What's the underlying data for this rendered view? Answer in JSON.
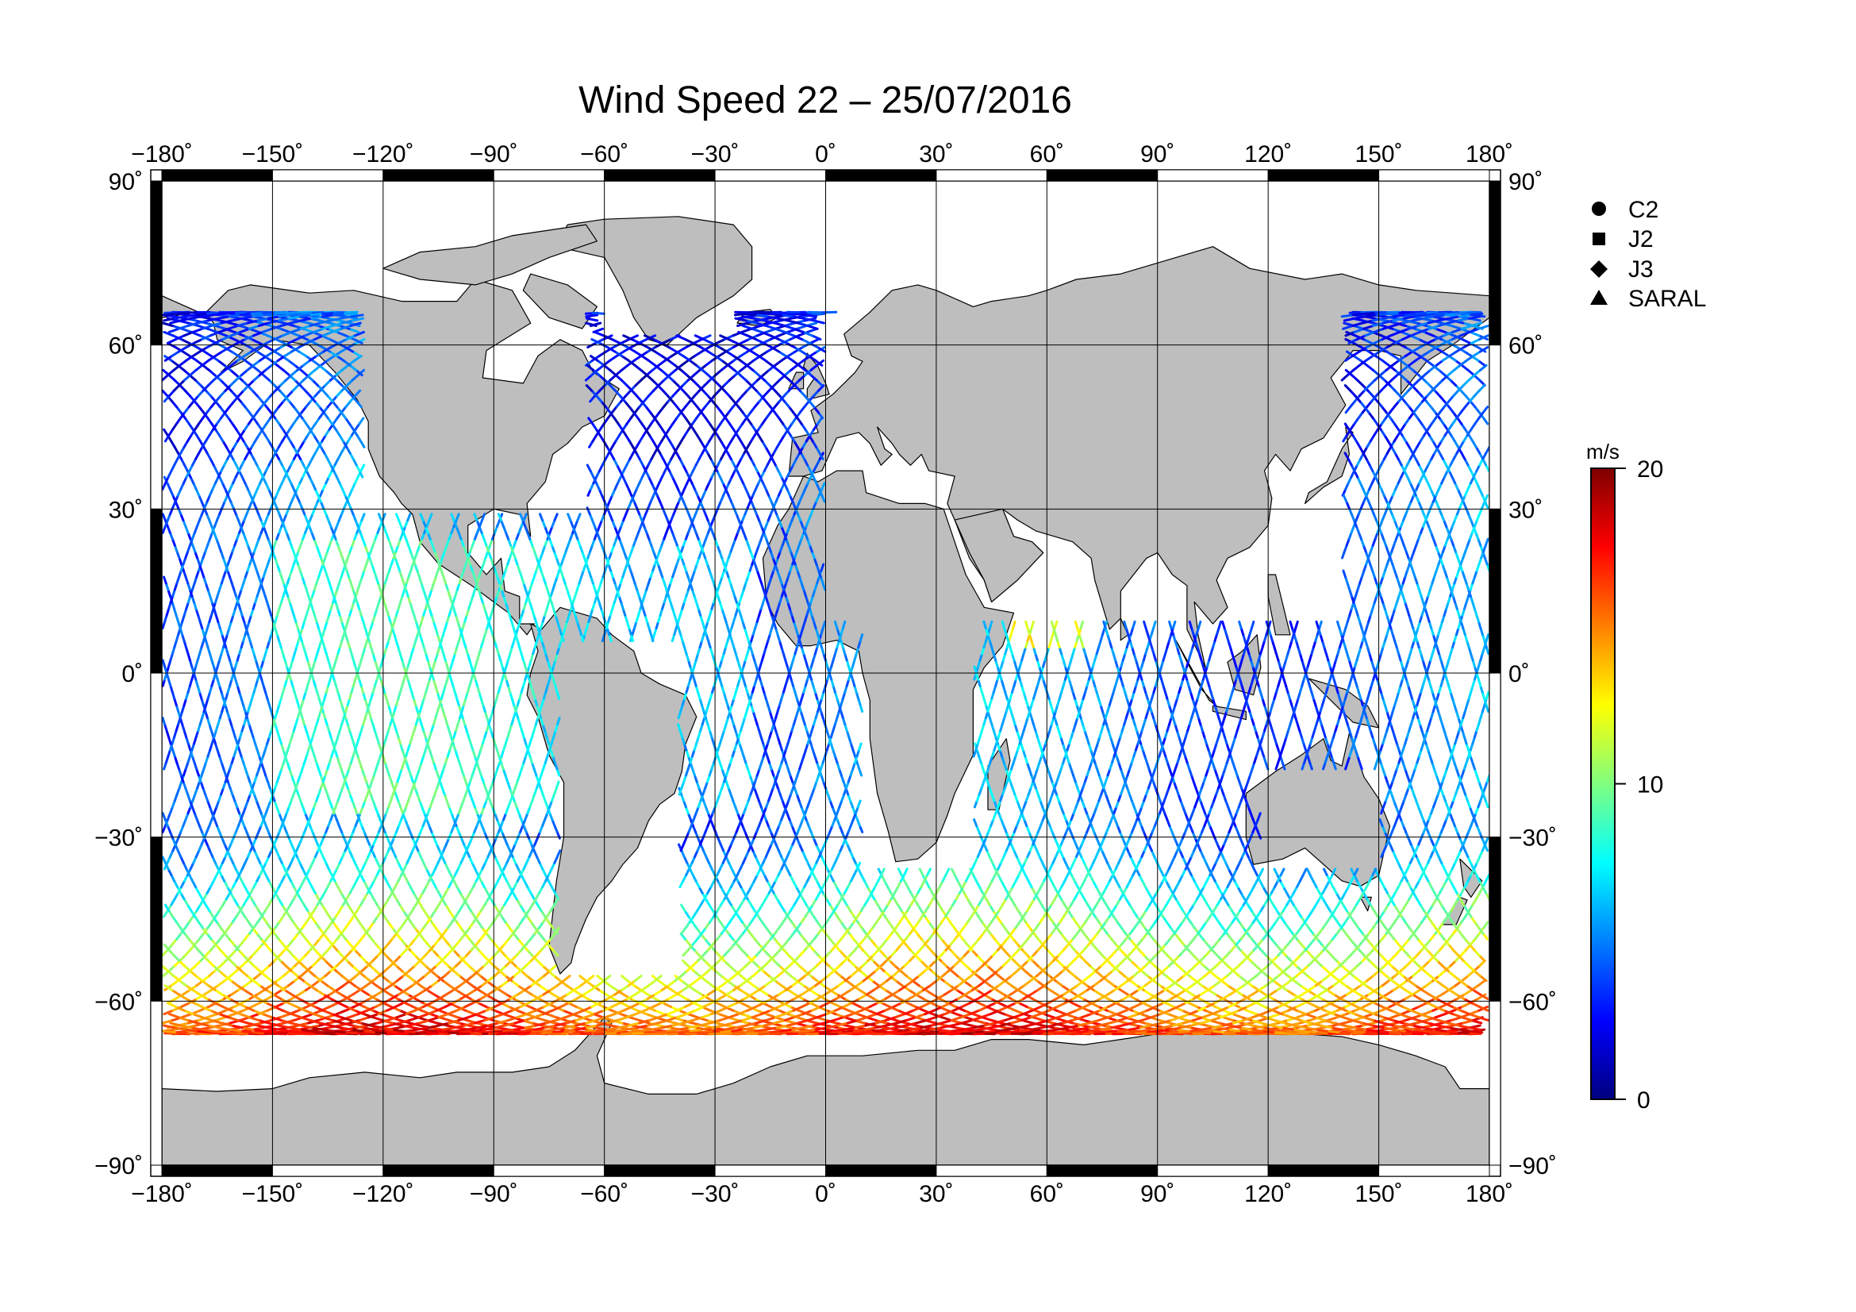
{
  "title": "Wind Speed 22 – 25/07/2016",
  "map": {
    "lon_range": [
      -180,
      180
    ],
    "lat_range": [
      -90,
      90
    ],
    "lon_ticks": [
      -180,
      -150,
      -120,
      -90,
      -60,
      -30,
      0,
      30,
      60,
      90,
      120,
      150,
      180
    ],
    "lat_ticks": [
      90,
      60,
      30,
      0,
      -30,
      -60,
      -90
    ],
    "lon_tick_labels": [
      "−180˚",
      "−150˚",
      "−120˚",
      "−90˚",
      "−60˚",
      "−30˚",
      "0˚",
      "30˚",
      "60˚",
      "90˚",
      "120˚",
      "150˚",
      "180˚"
    ],
    "lat_tick_labels": [
      "90˚",
      "60˚",
      "30˚",
      "0˚",
      "−30˚",
      "−60˚",
      "−90˚"
    ],
    "grid": true,
    "land_color": "#bebebe",
    "ocean_color": "#ffffff",
    "data_lat_limits": [
      -66,
      66
    ]
  },
  "legend": {
    "items": [
      {
        "label": "C2",
        "symbol": "circle-icon"
      },
      {
        "label": "J2",
        "symbol": "square-icon"
      },
      {
        "label": "J3",
        "symbol": "diamond-icon"
      },
      {
        "label": "SARAL",
        "symbol": "triangle-icon"
      }
    ]
  },
  "colorbar": {
    "unit": "m/s",
    "min": 0,
    "max": 20,
    "tick_values": [
      0,
      10,
      20
    ],
    "tick_labels": [
      "0",
      "10",
      "20"
    ],
    "colors": [
      "#00007f",
      "#0000ff",
      "#007fff",
      "#00ffff",
      "#7fff7f",
      "#ffff00",
      "#ff7f00",
      "#ff0000",
      "#7f0000"
    ]
  }
}
